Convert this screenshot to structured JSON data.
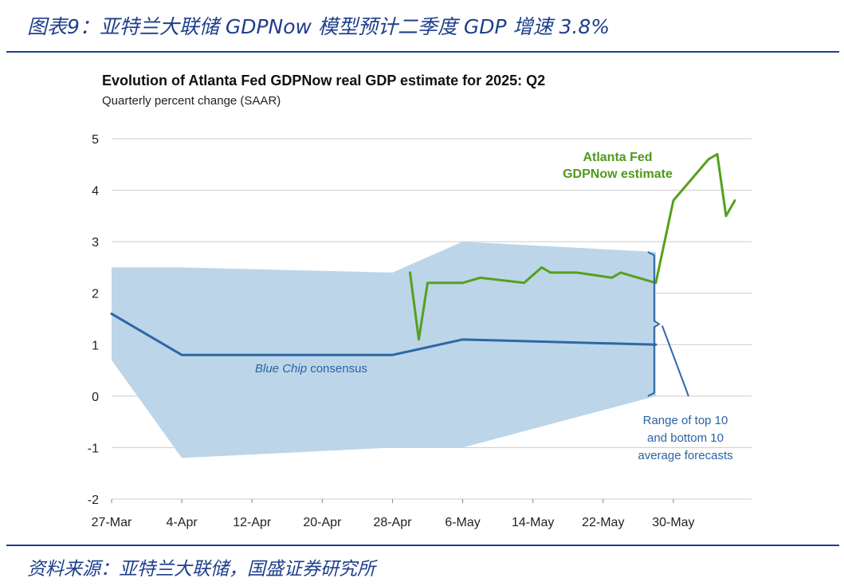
{
  "figure": {
    "caption": "图表9：亚特兰大联储 GDPNow 模型预计二季度 GDP 增速 3.8%",
    "source": "资料来源：亚特兰大联储，国盛证券研究所"
  },
  "colors": {
    "band": "#bcd5e8",
    "gdpnow": "#56a01e",
    "bluechip": "#2c68a6",
    "grid": "#cccccc",
    "caption": "#1f3f8c"
  },
  "chart_data": {
    "type": "line",
    "title": "Evolution of Atlanta Fed GDPNow real GDP estimate for 2025: Q2",
    "subtitle": "Quarterly percent change (SAAR)",
    "ylim": [
      -2,
      5
    ],
    "yticks": [
      "5",
      "4",
      "3",
      "2",
      "1",
      "0",
      "-1",
      "-2"
    ],
    "xlim": [
      "2025-03-27",
      "2025-06-07"
    ],
    "xticks": [
      {
        "date": "2025-03-27",
        "label": "27-Mar"
      },
      {
        "date": "2025-04-04",
        "label": "4-Apr"
      },
      {
        "date": "2025-04-12",
        "label": "12-Apr"
      },
      {
        "date": "2025-04-20",
        "label": "20-Apr"
      },
      {
        "date": "2025-04-28",
        "label": "28-Apr"
      },
      {
        "date": "2025-05-06",
        "label": "6-May"
      },
      {
        "date": "2025-05-14",
        "label": "14-May"
      },
      {
        "date": "2025-05-22",
        "label": "22-May"
      },
      {
        "date": "2025-05-30",
        "label": "30-May"
      }
    ],
    "grid": "horizontal",
    "series": [
      {
        "name": "Atlanta Fed GDPNow estimate",
        "label_lines": [
          "Atlanta Fed",
          "GDPNow estimate"
        ],
        "points": [
          [
            "2025-04-30",
            2.4
          ],
          [
            "2025-05-01",
            1.1
          ],
          [
            "2025-05-02",
            2.2
          ],
          [
            "2025-05-06",
            2.2
          ],
          [
            "2025-05-08",
            2.3
          ],
          [
            "2025-05-13",
            2.2
          ],
          [
            "2025-05-15",
            2.5
          ],
          [
            "2025-05-16",
            2.4
          ],
          [
            "2025-05-19",
            2.4
          ],
          [
            "2025-05-23",
            2.3
          ],
          [
            "2025-05-24",
            2.4
          ],
          [
            "2025-05-28",
            2.2
          ],
          [
            "2025-05-30",
            3.8
          ],
          [
            "2025-06-03",
            4.6
          ],
          [
            "2025-06-04",
            4.7
          ],
          [
            "2025-06-05",
            3.5
          ],
          [
            "2025-06-06",
            3.8
          ]
        ]
      },
      {
        "name_italic": "Blue Chip",
        "name_rest": " consensus",
        "points": [
          [
            "2025-03-27",
            1.6
          ],
          [
            "2025-04-04",
            0.8
          ],
          [
            "2025-04-28",
            0.8
          ],
          [
            "2025-05-06",
            1.1
          ],
          [
            "2025-05-28",
            1.0
          ]
        ]
      }
    ],
    "band": {
      "upper": [
        [
          "2025-03-27",
          2.5
        ],
        [
          "2025-04-04",
          2.5
        ],
        [
          "2025-04-28",
          2.4
        ],
        [
          "2025-05-06",
          3.0
        ],
        [
          "2025-05-28",
          2.8
        ]
      ],
      "lower": [
        [
          "2025-05-28",
          0.0
        ],
        [
          "2025-05-06",
          -1.0
        ],
        [
          "2025-04-28",
          -1.0
        ],
        [
          "2025-04-04",
          -1.2
        ],
        [
          "2025-03-27",
          0.7
        ]
      ],
      "label_lines": [
        "Range of top 10",
        "and bottom 10",
        "average forecasts"
      ]
    }
  }
}
